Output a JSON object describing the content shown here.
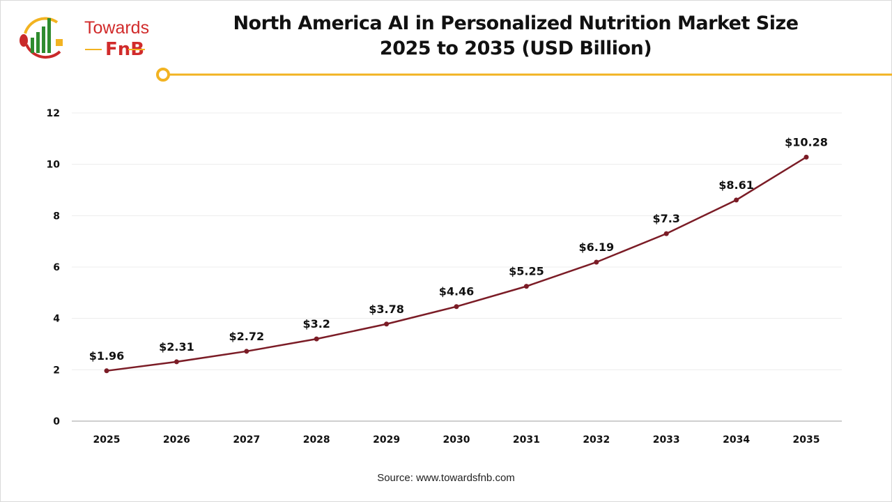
{
  "brand": {
    "logo_line1": "Towards",
    "logo_line2": "FnB"
  },
  "chart_data": {
    "type": "line",
    "title": "North America AI in Personalized Nutrition Market Size",
    "subtitle": "2025 to 2035 (USD Billion)",
    "categories": [
      "2025",
      "2026",
      "2027",
      "2028",
      "2029",
      "2030",
      "2031",
      "2032",
      "2033",
      "2034",
      "2035"
    ],
    "series": [
      {
        "values": [
          1.96,
          2.31,
          2.72,
          3.2,
          3.78,
          4.46,
          5.25,
          6.19,
          7.3,
          8.61,
          10.28
        ]
      }
    ],
    "data_labels": [
      "$1.96",
      "$2.31",
      "$2.72",
      "$3.2",
      "$3.78",
      "$4.46",
      "$5.25",
      "$6.19",
      "$7.3",
      "$8.61",
      "$10.28"
    ],
    "yticks": [
      "0",
      "2",
      "4",
      "6",
      "8",
      "10",
      "12"
    ],
    "ylim": [
      0,
      12
    ],
    "xlabel": "",
    "ylabel": "",
    "grid": true,
    "colors": {
      "line": "#7b1c26",
      "accent": "#f2b321",
      "grid": "#ececec",
      "axis": "#bfbfbf"
    }
  },
  "source": "Source: www.towardsfnb.com"
}
